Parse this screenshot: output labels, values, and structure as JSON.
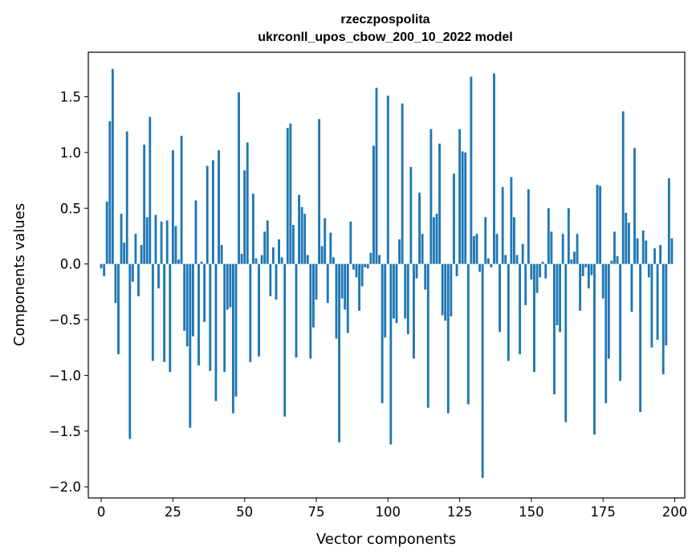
{
  "chart_data": {
    "type": "bar",
    "title_line1": "rzeczpospolita",
    "title_line2": "ukrconll_upos_cbow_200_10_2022 model",
    "xlabel": "Vector components",
    "ylabel": "Components values",
    "xlim": [
      -4.5,
      203.5
    ],
    "ylim": [
      -2.1,
      1.9
    ],
    "xticks": [
      0,
      25,
      50,
      75,
      100,
      125,
      150,
      175,
      200
    ],
    "xtick_labels": [
      "0",
      "25",
      "50",
      "75",
      "100",
      "125",
      "150",
      "175",
      "200"
    ],
    "yticks": [
      -2.0,
      -1.5,
      -1.0,
      -0.5,
      0.0,
      0.5,
      1.0,
      1.5
    ],
    "ytick_labels": [
      "−2.0",
      "−1.5",
      "−1.0",
      "−0.5",
      "0.0",
      "0.5",
      "1.0",
      "1.5"
    ],
    "bar_color": "#1f77b4",
    "grid": false,
    "legend": false,
    "values": [
      -0.04,
      -0.11,
      0.56,
      1.28,
      1.75,
      -0.35,
      -0.81,
      0.45,
      0.19,
      1.19,
      -1.57,
      -0.16,
      0.27,
      -0.29,
      0.17,
      1.07,
      0.42,
      1.32,
      -0.87,
      0.44,
      -0.22,
      0.38,
      -0.88,
      0.39,
      -0.97,
      1.02,
      0.34,
      0.04,
      1.15,
      -0.6,
      -0.74,
      -1.47,
      -0.65,
      0.57,
      -0.91,
      0.02,
      -0.52,
      0.88,
      -0.96,
      0.93,
      -1.23,
      1.02,
      0.17,
      -0.97,
      -0.41,
      -0.39,
      -1.34,
      -1.19,
      1.54,
      0.09,
      0.84,
      1.09,
      -0.88,
      0.63,
      0.05,
      -0.83,
      0.08,
      0.29,
      0.39,
      -0.29,
      0.15,
      -0.32,
      0.22,
      0.06,
      -1.37,
      1.22,
      1.26,
      0.35,
      -0.84,
      0.62,
      0.51,
      0.45,
      0.08,
      -0.85,
      -0.57,
      -0.32,
      1.3,
      0.16,
      0.41,
      -0.35,
      0.28,
      0.06,
      -0.67,
      -1.6,
      -0.31,
      -0.41,
      -0.62,
      0.38,
      -0.05,
      -0.12,
      -0.42,
      -0.2,
      -0.03,
      -0.04,
      0.1,
      1.06,
      1.58,
      0.08,
      -1.25,
      -0.66,
      1.51,
      -1.62,
      -0.49,
      -0.53,
      0.22,
      1.44,
      -0.49,
      -0.63,
      0.87,
      -0.85,
      -0.13,
      0.64,
      0.27,
      -0.23,
      -1.29,
      1.21,
      0.42,
      0.45,
      1.08,
      -0.46,
      -0.51,
      -1.34,
      -0.47,
      0.81,
      -0.11,
      1.21,
      1.01,
      1.0,
      -1.26,
      1.68,
      0.25,
      0.27,
      -0.07,
      -1.92,
      0.42,
      0.05,
      -0.03,
      1.71,
      0.27,
      -0.61,
      0.69,
      0.08,
      -0.87,
      0.78,
      0.42,
      0.08,
      -0.81,
      0.18,
      -0.37,
      0.67,
      -0.14,
      -0.97,
      -0.26,
      -0.12,
      0.02,
      -0.13,
      0.5,
      0.29,
      -1.17,
      -0.55,
      -0.61,
      0.27,
      -1.42,
      0.5,
      0.04,
      0.11,
      0.27,
      -0.42,
      -0.11,
      -0.03,
      -0.22,
      -0.1,
      -1.53,
      0.71,
      0.7,
      -0.31,
      -1.25,
      -0.85,
      0.03,
      0.29,
      0.07,
      -1.05,
      1.37,
      0.46,
      0.37,
      -0.43,
      1.04,
      0.23,
      -1.33,
      0.3,
      0.21,
      -0.12,
      -0.75,
      0.14,
      -0.68,
      0.17,
      -0.99,
      -0.73,
      0.77,
      0.23
    ]
  }
}
